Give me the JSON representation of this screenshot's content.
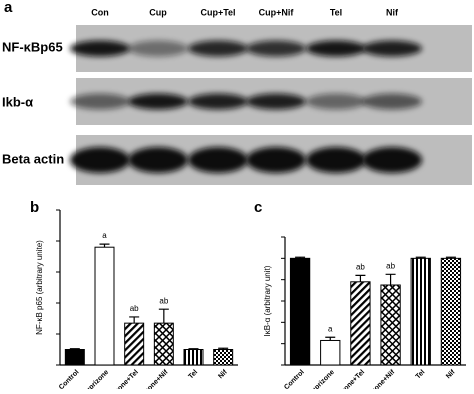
{
  "panel_a": {
    "label": "a",
    "lanes": [
      "Con",
      "Cup",
      "Cup+Tel",
      "Cup+Nif",
      "Tel",
      "Nif"
    ],
    "rows": [
      "NF-κBp65",
      "Ikb-α",
      "Beta actin"
    ]
  },
  "chart_data": [
    {
      "type": "bar",
      "panel": "b",
      "ylabel": "NF-κB p65  (arbitrary unite)",
      "categories": [
        "Control",
        "Cuprizone",
        "Cuprizone+Tel",
        "Cuprizone+Nif",
        "Tel",
        "Nif"
      ],
      "values": [
        1.0,
        7.6,
        2.7,
        2.7,
        1.0,
        1.0
      ],
      "errors": [
        0.05,
        0.2,
        0.4,
        0.9,
        0.05,
        0.08
      ],
      "annotations": [
        null,
        "a",
        "ab",
        "ab",
        null,
        null
      ],
      "patterns": [
        "solid",
        "open",
        "diagonal",
        "cross",
        "vertical",
        "checker"
      ],
      "ylim": [
        0,
        10
      ],
      "yticks": [
        0,
        2,
        4,
        6,
        8,
        10
      ]
    },
    {
      "type": "bar",
      "panel": "c",
      "ylabel": "IκB-α (arbitrary unit)",
      "categories": [
        "Control",
        "Cuprizone",
        "Cuprizone+Tel",
        "Cuprizone+Nif",
        "Tel",
        "Nif"
      ],
      "values": [
        1.0,
        0.23,
        0.78,
        0.75,
        1.0,
        1.0
      ],
      "errors": [
        0.01,
        0.03,
        0.06,
        0.1,
        0.01,
        0.01
      ],
      "annotations": [
        null,
        "a",
        "ab",
        "ab",
        null,
        null
      ],
      "patterns": [
        "solid",
        "open",
        "diagonal",
        "cross",
        "vertical",
        "checker"
      ],
      "ylim": [
        0,
        1.2
      ],
      "yticks": [
        0,
        0.2,
        0.4,
        0.6,
        0.8,
        1.0,
        1.2
      ]
    }
  ]
}
